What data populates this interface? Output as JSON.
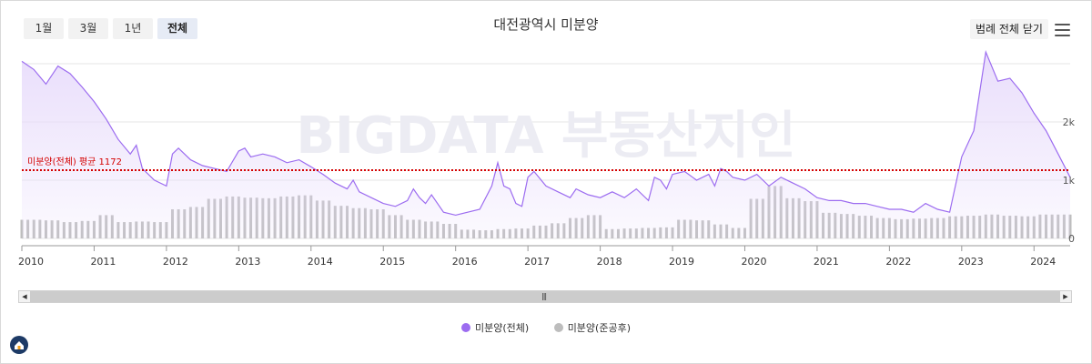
{
  "range_buttons": [
    {
      "label": "1월"
    },
    {
      "label": "3월"
    },
    {
      "label": "1년"
    },
    {
      "label": "전체"
    }
  ],
  "active_range": "전체",
  "legend_toggle_label": "범례 전체 닫기",
  "watermark_text": "BIGDATA 부동산지인",
  "colors": {
    "total": "#9c6cf0",
    "total_fill": "#e8dcfb",
    "completed": "#bdbdbd",
    "average": "#d40000",
    "grid": "#e6e6e6"
  },
  "chart_data": {
    "type": "area",
    "title": "대전광역시 미분양",
    "x_start": "2010-01",
    "x_end": "2024-07",
    "x_tick_labels": [
      "2010",
      "2011",
      "2012",
      "2013",
      "2014",
      "2015",
      "2016",
      "2017",
      "2018",
      "2019",
      "2020",
      "2021",
      "2022",
      "2023",
      "2024"
    ],
    "y_tick_labels": [
      "0",
      "1k",
      "2k"
    ],
    "ylim": [
      0,
      3000
    ],
    "grid": true,
    "legend_position": "bottom",
    "average_line": {
      "label": "미분양(전체) 평균 1172",
      "value": 1172
    },
    "series": [
      {
        "name": "미분양(전체)",
        "type": "area",
        "points": [
          [
            "2010-01",
            3040
          ],
          [
            "2010-03",
            2900
          ],
          [
            "2010-05",
            2650
          ],
          [
            "2010-07",
            2960
          ],
          [
            "2010-09",
            2830
          ],
          [
            "2010-11",
            2600
          ],
          [
            "2011-01",
            2350
          ],
          [
            "2011-03",
            2050
          ],
          [
            "2011-05",
            1700
          ],
          [
            "2011-07",
            1450
          ],
          [
            "2011-08",
            1600
          ],
          [
            "2011-09",
            1200
          ],
          [
            "2011-11",
            1000
          ],
          [
            "2012-01",
            900
          ],
          [
            "2012-02",
            1450
          ],
          [
            "2012-03",
            1550
          ],
          [
            "2012-05",
            1350
          ],
          [
            "2012-07",
            1250
          ],
          [
            "2012-09",
            1200
          ],
          [
            "2012-11",
            1150
          ],
          [
            "2013-01",
            1500
          ],
          [
            "2013-02",
            1550
          ],
          [
            "2013-03",
            1400
          ],
          [
            "2013-05",
            1450
          ],
          [
            "2013-07",
            1400
          ],
          [
            "2013-09",
            1300
          ],
          [
            "2013-11",
            1350
          ],
          [
            "2014-01",
            1230
          ],
          [
            "2014-03",
            1100
          ],
          [
            "2014-05",
            950
          ],
          [
            "2014-07",
            850
          ],
          [
            "2014-08",
            1000
          ],
          [
            "2014-09",
            800
          ],
          [
            "2014-11",
            700
          ],
          [
            "2015-01",
            600
          ],
          [
            "2015-03",
            550
          ],
          [
            "2015-05",
            650
          ],
          [
            "2015-06",
            850
          ],
          [
            "2015-07",
            700
          ],
          [
            "2015-08",
            600
          ],
          [
            "2015-09",
            750
          ],
          [
            "2015-11",
            450
          ],
          [
            "2016-01",
            400
          ],
          [
            "2016-03",
            450
          ],
          [
            "2016-05",
            500
          ],
          [
            "2016-07",
            900
          ],
          [
            "2016-08",
            1300
          ],
          [
            "2016-09",
            900
          ],
          [
            "2016-10",
            850
          ],
          [
            "2016-11",
            600
          ],
          [
            "2016-12",
            550
          ],
          [
            "2017-01",
            1050
          ],
          [
            "2017-02",
            1150
          ],
          [
            "2017-04",
            900
          ],
          [
            "2017-06",
            800
          ],
          [
            "2017-08",
            700
          ],
          [
            "2017-09",
            850
          ],
          [
            "2017-11",
            750
          ],
          [
            "2018-01",
            700
          ],
          [
            "2018-03",
            800
          ],
          [
            "2018-05",
            700
          ],
          [
            "2018-07",
            850
          ],
          [
            "2018-09",
            650
          ],
          [
            "2018-10",
            1050
          ],
          [
            "2018-11",
            1000
          ],
          [
            "2018-12",
            850
          ],
          [
            "2019-01",
            1100
          ],
          [
            "2019-03",
            1150
          ],
          [
            "2019-05",
            1000
          ],
          [
            "2019-07",
            1100
          ],
          [
            "2019-08",
            900
          ],
          [
            "2019-09",
            1200
          ],
          [
            "2019-10",
            1150
          ],
          [
            "2019-11",
            1050
          ],
          [
            "2020-01",
            1000
          ],
          [
            "2020-03",
            1100
          ],
          [
            "2020-05",
            900
          ],
          [
            "2020-07",
            1050
          ],
          [
            "2020-09",
            950
          ],
          [
            "2020-11",
            850
          ],
          [
            "2021-01",
            700
          ],
          [
            "2021-03",
            650
          ],
          [
            "2021-05",
            650
          ],
          [
            "2021-07",
            600
          ],
          [
            "2021-09",
            600
          ],
          [
            "2021-11",
            550
          ],
          [
            "2022-01",
            500
          ],
          [
            "2022-03",
            500
          ],
          [
            "2022-05",
            450
          ],
          [
            "2022-07",
            600
          ],
          [
            "2022-09",
            500
          ],
          [
            "2022-11",
            450
          ],
          [
            "2023-01",
            1400
          ],
          [
            "2023-03",
            1850
          ],
          [
            "2023-05",
            3200
          ],
          [
            "2023-07",
            2700
          ],
          [
            "2023-09",
            2750
          ],
          [
            "2023-11",
            2500
          ],
          [
            "2024-01",
            2150
          ],
          [
            "2024-03",
            1850
          ],
          [
            "2024-05",
            1450
          ],
          [
            "2024-07",
            1050
          ]
        ]
      },
      {
        "name": "미분양(준공후)",
        "type": "bar",
        "points": [
          [
            "2010-01",
            320
          ],
          [
            "2010-04",
            310
          ],
          [
            "2010-07",
            280
          ],
          [
            "2010-10",
            300
          ],
          [
            "2011-01",
            400
          ],
          [
            "2011-04",
            280
          ],
          [
            "2011-07",
            290
          ],
          [
            "2011-10",
            280
          ],
          [
            "2012-01",
            500
          ],
          [
            "2012-04",
            540
          ],
          [
            "2012-07",
            680
          ],
          [
            "2012-10",
            720
          ],
          [
            "2013-01",
            700
          ],
          [
            "2013-04",
            690
          ],
          [
            "2013-07",
            720
          ],
          [
            "2013-10",
            740
          ],
          [
            "2014-01",
            650
          ],
          [
            "2014-04",
            560
          ],
          [
            "2014-07",
            520
          ],
          [
            "2014-10",
            500
          ],
          [
            "2015-01",
            400
          ],
          [
            "2015-04",
            320
          ],
          [
            "2015-07",
            290
          ],
          [
            "2015-10",
            250
          ],
          [
            "2016-01",
            150
          ],
          [
            "2016-04",
            140
          ],
          [
            "2016-07",
            160
          ],
          [
            "2016-10",
            170
          ],
          [
            "2017-01",
            220
          ],
          [
            "2017-04",
            260
          ],
          [
            "2017-07",
            350
          ],
          [
            "2017-10",
            400
          ],
          [
            "2018-01",
            160
          ],
          [
            "2018-04",
            170
          ],
          [
            "2018-07",
            180
          ],
          [
            "2018-10",
            190
          ],
          [
            "2019-01",
            320
          ],
          [
            "2019-04",
            310
          ],
          [
            "2019-07",
            240
          ],
          [
            "2019-10",
            180
          ],
          [
            "2020-01",
            680
          ],
          [
            "2020-04",
            900
          ],
          [
            "2020-07",
            690
          ],
          [
            "2020-10",
            640
          ],
          [
            "2021-01",
            440
          ],
          [
            "2021-04",
            420
          ],
          [
            "2021-07",
            390
          ],
          [
            "2021-10",
            350
          ],
          [
            "2022-01",
            330
          ],
          [
            "2022-04",
            340
          ],
          [
            "2022-07",
            350
          ],
          [
            "2022-10",
            380
          ],
          [
            "2023-01",
            390
          ],
          [
            "2023-04",
            410
          ],
          [
            "2023-07",
            390
          ],
          [
            "2023-10",
            380
          ],
          [
            "2024-01",
            410
          ],
          [
            "2024-04",
            410
          ],
          [
            "2024-07",
            370
          ]
        ]
      }
    ]
  }
}
